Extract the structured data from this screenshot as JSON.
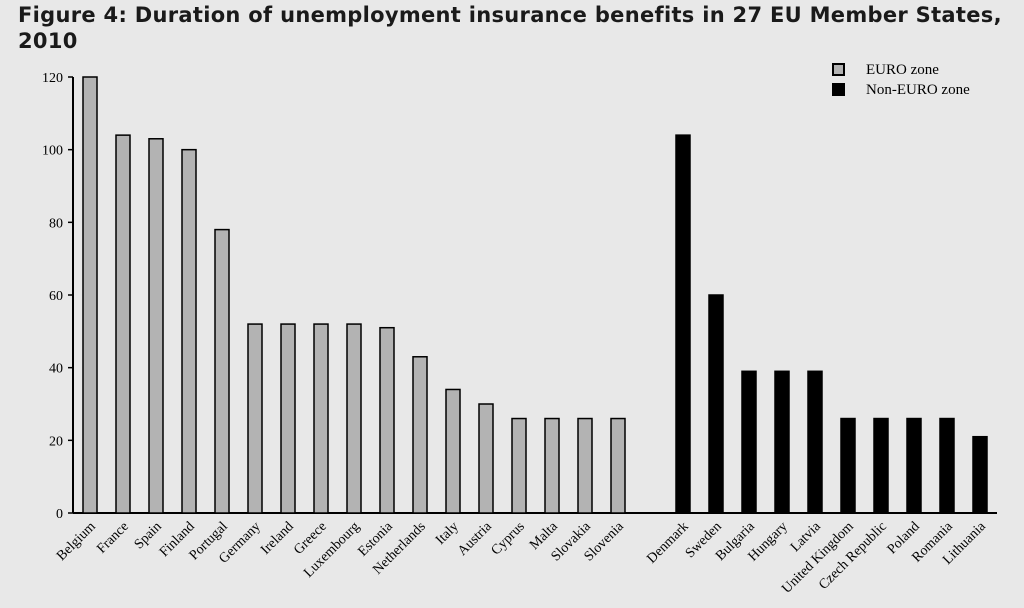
{
  "title": "Figure 4: Duration of unemployment insurance benefits in 27 EU Member States, 2010",
  "colors": {
    "euro": "#b3b3b3",
    "non_euro": "#000000",
    "background": "#e8e8e8"
  },
  "chart_data": {
    "type": "bar",
    "title": "Figure 4: Duration of unemployment insurance benefits in 27 EU Member States, 2010",
    "xlabel": "",
    "ylabel": "",
    "ylim": [
      0,
      120
    ],
    "yticks": [
      0,
      20,
      40,
      60,
      80,
      100,
      120
    ],
    "grid": false,
    "legend_position": "top-right",
    "series": [
      {
        "name": "EURO zone",
        "color": "#b3b3b3",
        "categories": [
          "Belgium",
          "France",
          "Spain",
          "Finland",
          "Portugal",
          "Germany",
          "Ireland",
          "Greece",
          "Luxembourg",
          "Estonia",
          "Netherlands",
          "Italy",
          "Austria",
          "Cyprus",
          "Malta",
          "Slovakia",
          "Slovenia"
        ],
        "values": [
          120,
          104,
          103,
          100,
          78,
          52,
          52,
          52,
          52,
          51,
          43,
          34,
          30,
          26,
          26,
          26,
          26
        ]
      },
      {
        "name": "Non-EURO zone",
        "color": "#000000",
        "categories": [
          "Denmark",
          "Sweden",
          "Bulgaria",
          "Hungary",
          "Latvia",
          "United Kingdom",
          "Czech Republic",
          "Poland",
          "Romania",
          "Lithuania"
        ],
        "values": [
          104,
          60,
          39,
          39,
          39,
          26,
          26,
          26,
          26,
          21
        ]
      }
    ]
  }
}
